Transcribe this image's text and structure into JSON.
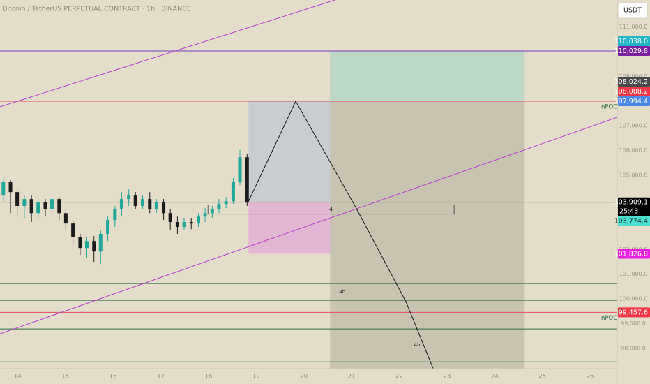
{
  "chart_data": {
    "type": "candlestick",
    "title": "Bitcoin / TetherUS PERPETUAL CONTRACT · 1h · BINANCE",
    "currency_button": "USDT",
    "x": [
      13.7,
      13.85,
      13.99,
      14.14,
      14.29,
      14.43,
      14.58,
      14.72,
      14.87,
      15.01,
      15.16,
      15.31,
      15.45,
      15.6,
      15.74,
      15.89,
      16.04,
      16.18,
      16.33,
      16.47,
      16.62,
      16.77,
      16.91,
      17.06,
      17.2,
      17.35,
      17.49,
      17.64,
      17.79,
      17.93,
      18.08,
      18.22,
      18.37,
      18.52,
      18.66,
      18.81
    ],
    "open": [
      104180,
      104750,
      104320,
      103760,
      104040,
      103470,
      103900,
      103620,
      104040,
      103470,
      103050,
      102490,
      102060,
      102340,
      101920,
      102630,
      103190,
      103620,
      104040,
      104180,
      103760,
      104040,
      103620,
      103900,
      103470,
      103110,
      102910,
      103110,
      103050,
      103330,
      103470,
      103620,
      103840,
      103950,
      104750,
      105730
    ],
    "high": [
      104890,
      104800,
      104460,
      104180,
      104180,
      104040,
      104040,
      104180,
      104120,
      103620,
      103190,
      102630,
      102490,
      102540,
      102770,
      103330,
      103760,
      104320,
      104460,
      104320,
      104180,
      104320,
      104040,
      104040,
      103620,
      103330,
      103280,
      103280,
      103470,
      103670,
      103760,
      104040,
      104120,
      104890,
      106020,
      105880
    ],
    "low": [
      103900,
      103470,
      103330,
      103280,
      103110,
      103280,
      103330,
      103470,
      103190,
      102770,
      102200,
      101780,
      101640,
      101500,
      101410,
      102340,
      102910,
      103330,
      103760,
      103620,
      103620,
      103470,
      103470,
      103190,
      102770,
      102630,
      102770,
      102820,
      102910,
      103110,
      103280,
      103470,
      103670,
      103840,
      104600,
      103760
    ],
    "close": [
      104750,
      104320,
      103760,
      104040,
      103470,
      103900,
      103620,
      104040,
      103470,
      103050,
      102490,
      102060,
      102340,
      101920,
      102630,
      103190,
      103620,
      104040,
      104180,
      103760,
      104040,
      103620,
      103900,
      103470,
      103110,
      102910,
      103110,
      103050,
      103330,
      103470,
      103620,
      103840,
      103950,
      104750,
      105730,
      103900
    ],
    "up_color": "#22a89a",
    "down_color": "#1c1c1c",
    "xlim": [
      13.63,
      26.57
    ],
    "xticks": [
      14,
      15,
      16,
      17,
      18,
      19,
      20,
      21,
      22,
      23,
      24,
      25,
      26
    ],
    "ylim": [
      97180,
      112090
    ],
    "yticks": [
      {
        "value": 111000,
        "label": "111,000.0"
      },
      {
        "value": 109000,
        "label": "109,000.0"
      },
      {
        "value": 107000,
        "label": "107,000.0"
      },
      {
        "value": 106000,
        "label": "106,000.0"
      },
      {
        "value": 105000,
        "label": "105,000.0"
      },
      {
        "value": 102000,
        "label": "102,000.0"
      },
      {
        "value": 101000,
        "label": "101,000.0"
      },
      {
        "value": 100000,
        "label": "100,000.0"
      },
      {
        "value": 99000,
        "label": "99,000.0"
      },
      {
        "value": 98000,
        "label": "98,000.0"
      }
    ],
    "grid": false,
    "hlines": [
      {
        "value": 110029.8,
        "color": "#7b3fc4"
      },
      {
        "value": 107994.4,
        "color": "#e84a5f",
        "label": "nPOC"
      },
      {
        "value": 103909.1,
        "color": "#9e9a8c"
      },
      {
        "value": 100621,
        "color": "#2e6e48"
      },
      {
        "value": 99943,
        "color": "#2e6e48"
      },
      {
        "value": 99457.6,
        "color": "#e84a5f",
        "label": "nPOC"
      },
      {
        "value": 98785,
        "color": "#2e6e48"
      },
      {
        "value": 97457,
        "color": "#2e6e48"
      }
    ],
    "trendlines": [
      {
        "x": [
          13.63,
          20.65
        ],
        "y": [
          107768,
          112090
        ],
        "color": "#b63ccf"
      },
      {
        "x": [
          13.63,
          26.57
        ],
        "y": [
          98587,
          107345
        ],
        "color": "#b63ccf"
      }
    ],
    "boxes": [
      {
        "x": [
          20.55,
          24.63
        ],
        "y": [
          97180,
          108008.2
        ],
        "color": "#c4bfae"
      },
      {
        "x": [
          18.84,
          20.55
        ],
        "y": [
          103909.1,
          107994.4
        ],
        "color": "#c3cbd0"
      },
      {
        "x": [
          18.84,
          20.55
        ],
        "y": [
          101826.8,
          103909.1
        ],
        "color": "#e2b0d6"
      },
      {
        "x": [
          20.55,
          24.63
        ],
        "y": [
          108008.2,
          110038.0
        ],
        "color": "#b6d8c6"
      },
      {
        "x": [
          17.99,
          23.15
        ],
        "y": [
          103430,
          103800
        ],
        "color": "none",
        "label": "4"
      }
    ],
    "path": {
      "x": [
        18.83,
        19.83,
        21.09,
        22.14,
        22.75
      ],
      "y": [
        103909.1,
        107994.4,
        103700,
        99890,
        97000
      ],
      "color": "#111111"
    },
    "annotations": [
      {
        "text": "4h",
        "x": 20.74,
        "y": 100282
      },
      {
        "text": "4h",
        "x": 22.31,
        "y": 98135
      }
    ],
    "price_labels": [
      {
        "value": 110038.0,
        "label": "110,038.0",
        "color": "#22b5c8",
        "text_color": "#ffffff"
      },
      {
        "value": 110029.8,
        "label": "110,029.8",
        "color": "#7b1fa2",
        "text_color": "#ffffff"
      },
      {
        "value": 108024.2,
        "label": "108,024.2",
        "color": "#4a4a4a",
        "text_color": "#ffffff"
      },
      {
        "value": 108008.2,
        "label": "108,008.2",
        "color": "#f23645",
        "text_color": "#ffffff"
      },
      {
        "value": 107994.4,
        "label": "107,994.4",
        "color": "#4c86e8",
        "text_color": "#ffffff"
      },
      {
        "value": 103909.1,
        "label": "103,909.1",
        "color": "#000000",
        "text_color": "#ffffff",
        "countdown": "25:43"
      },
      {
        "value": 103774.4,
        "label": "103,774.4",
        "color": "#4ee0d0",
        "text_color": "#10302c"
      },
      {
        "value": 101826.8,
        "label": "101,826.8",
        "color": "#e91ee0",
        "text_color": "#ffffff"
      },
      {
        "value": 99457.6,
        "label": "99,457.6",
        "color": "#f23645",
        "text_color": "#ffffff"
      }
    ]
  }
}
